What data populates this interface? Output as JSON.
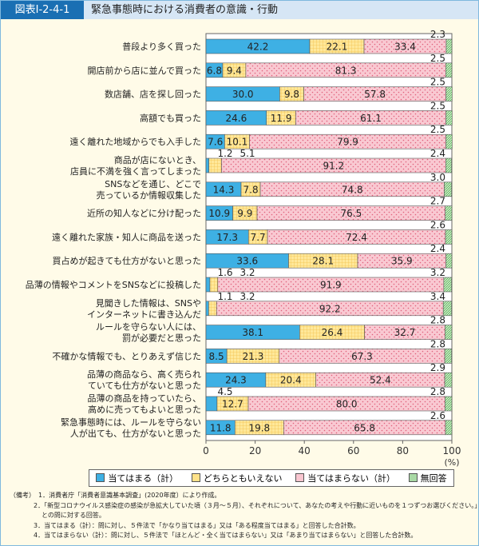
{
  "header": {
    "tag": "図表Ⅰ-2-4-1",
    "title": "緊急事態時における消費者の意識・行動"
  },
  "chart_data": {
    "type": "bar",
    "stacked": true,
    "orientation": "horizontal",
    "xlim": [
      0,
      100
    ],
    "xticks": [
      0,
      20,
      40,
      60,
      80,
      100
    ],
    "xunit": "(%)",
    "colors": {
      "yes": "#3eb0e4",
      "neutral": "#ffe28a",
      "no": "#f9c6d0",
      "na": "#a9d9a5"
    },
    "categories": [
      "普段より多く買った",
      "開店前から店に並んで買った",
      "数店舗、店を探し回った",
      "高額でも買った",
      "遠く離れた地域からでも入手した",
      "商品が店にないとき、\n店員に不満を強く言ってしまった",
      "SNSなどを通じ、どこで\n売っているか情報収集した",
      "近所の知人などに分け配った",
      "遠く離れた家族・知人に商品を送った",
      "買占めが起きても仕方がないと思った",
      "品薄の情報やコメントをSNSなどに投稿した",
      "見聞きした情報は、SNSや\nインターネットに書き込んだ",
      "ルールを守らない人には、\n罰が必要だと思った",
      "不確かな情報でも、とりあえず信じた",
      "品薄の商品なら、高く売られ\nていても仕方がないと思った",
      "品薄の商品を持っていたら、\n高めに売ってもよいと思った",
      "緊急事態時には、ルールを守らない\n人が出ても、仕方がないと思った"
    ],
    "series": [
      {
        "name": "当てはまる（計）",
        "values": [
          42.2,
          6.8,
          30.0,
          24.6,
          7.6,
          1.2,
          14.3,
          10.9,
          17.3,
          33.6,
          1.6,
          1.1,
          38.1,
          8.5,
          24.3,
          4.5,
          11.8
        ]
      },
      {
        "name": "どちらともいえない",
        "values": [
          22.1,
          9.4,
          9.8,
          11.9,
          10.1,
          5.1,
          7.8,
          9.9,
          7.7,
          28.1,
          3.2,
          3.2,
          26.4,
          21.3,
          20.4,
          12.7,
          19.8
        ]
      },
      {
        "name": "当てはまらない（計）",
        "values": [
          33.4,
          81.3,
          57.8,
          61.1,
          79.9,
          91.2,
          74.8,
          76.5,
          72.4,
          35.9,
          91.9,
          92.2,
          32.7,
          67.3,
          52.4,
          80.0,
          65.8
        ]
      },
      {
        "name": "無回答",
        "values": [
          2.3,
          2.5,
          2.5,
          2.5,
          2.5,
          2.4,
          3.0,
          2.7,
          2.6,
          2.4,
          3.2,
          3.4,
          2.8,
          2.8,
          2.9,
          2.8,
          2.6
        ]
      }
    ],
    "legend": "bottom"
  },
  "notes": [
    "（備考）　1．消費者庁「消費者意識基本調査」(2020年度）により作成。",
    "2．「新型コロナウイルス感染症の感染が急拡大していた頃（３月～５月）、それぞれについて、あなたの考えや行動に近いものを１つずつお選びください。」との問に対する回答。",
    "3．当てはまる（計）：問に対し、５件法で「かなり当てはまる」又は「ある程度当てはまる」と回答した合計数。",
    "4．当てはまらない（計）：問に対し、５件法で「ほとんど・全く当てはまらない」又は「あまり当てはまらない」と回答した合計数。"
  ]
}
